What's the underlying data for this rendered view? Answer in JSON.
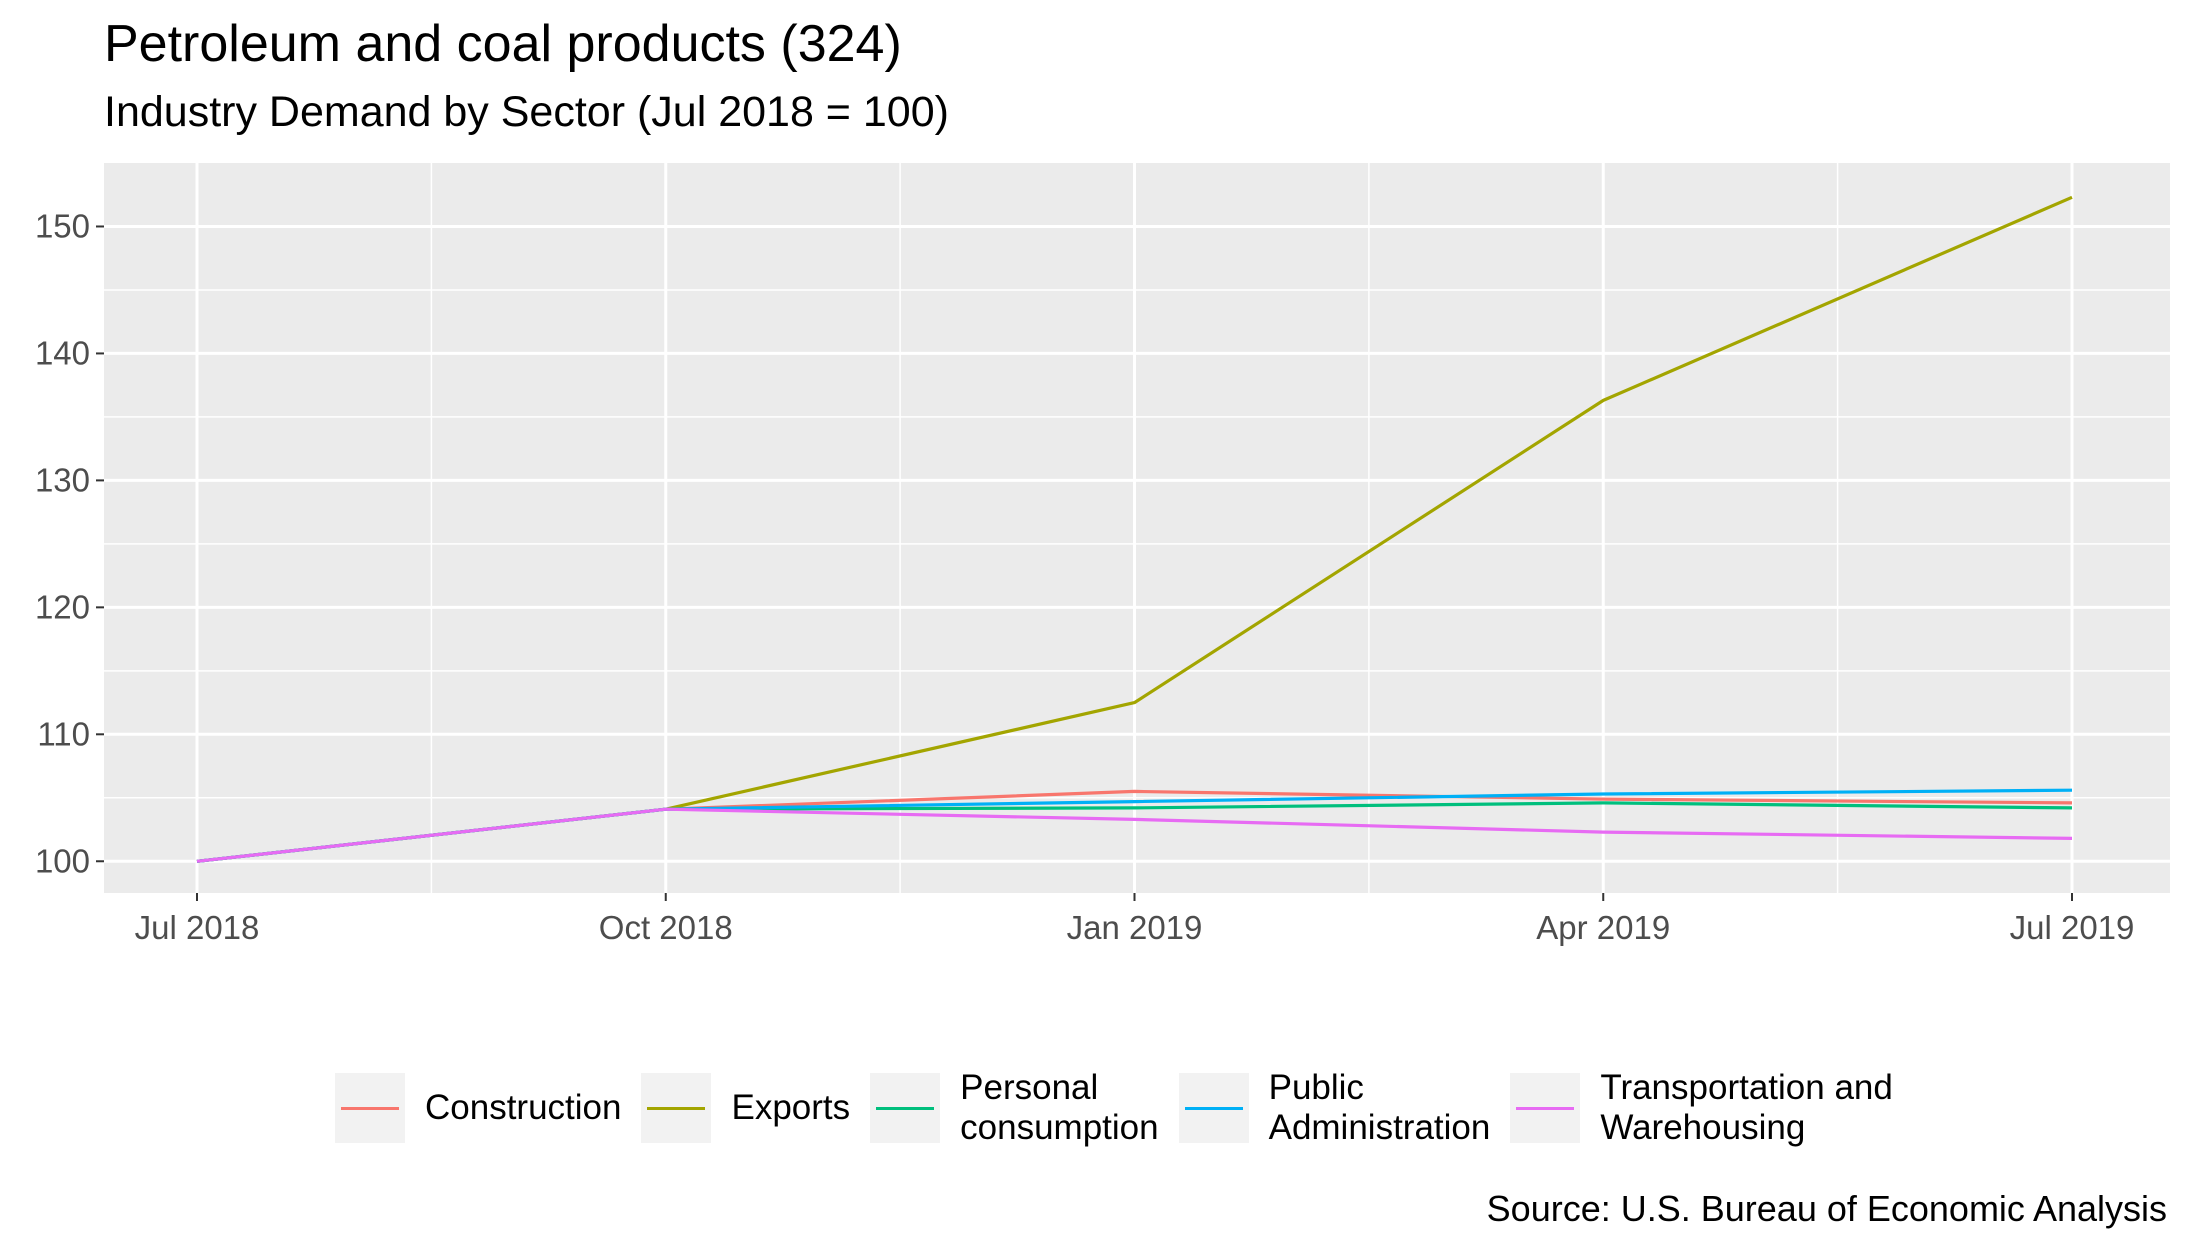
{
  "title": "Petroleum and coal products (324)",
  "subtitle": "Industry Demand by Sector (Jul 2018 = 100)",
  "source": "Source: U.S. Bureau of Economic Analysis",
  "colors": {
    "panel_background": "#ebebeb",
    "grid": "#ffffff",
    "legend_key_background": "#f2f2f2"
  },
  "chart_data": {
    "type": "line",
    "title": "Petroleum and coal products (324)",
    "subtitle": "Industry Demand by Sector (Jul 2018 = 100)",
    "xlabel": "",
    "ylabel": "",
    "x": [
      "Jul 2018",
      "Oct 2018",
      "Jan 2019",
      "Apr 2019",
      "Jul 2019"
    ],
    "x_tick_labels": [
      "Jul 2018",
      "Oct 2018",
      "Jan 2019",
      "Apr 2019",
      "Jul 2019"
    ],
    "y_ticks": [
      100,
      110,
      120,
      130,
      140,
      150
    ],
    "ylim": [
      97.5,
      155
    ],
    "grid": true,
    "legend_position": "bottom",
    "series": [
      {
        "name": "Construction",
        "color": "#F8766D",
        "values": [
          100,
          104.1,
          105.5,
          104.9,
          104.6
        ]
      },
      {
        "name": "Exports",
        "color": "#A3A500",
        "values": [
          100,
          104.1,
          112.5,
          136.3,
          152.3
        ]
      },
      {
        "name": "Personal consumption",
        "color": "#00BF7D",
        "values": [
          100,
          104.1,
          104.2,
          104.6,
          104.2
        ]
      },
      {
        "name": "Public Administration",
        "color": "#00B0F6",
        "values": [
          100,
          104.1,
          104.7,
          105.3,
          105.6
        ]
      },
      {
        "name": "Transportation and Warehousing",
        "color": "#E76BF3",
        "values": [
          100,
          104.1,
          103.3,
          102.3,
          101.8
        ]
      }
    ]
  },
  "legend": [
    {
      "label": "Construction"
    },
    {
      "label": "Exports"
    },
    {
      "label": "Personal\nconsumption"
    },
    {
      "label": "Public\nAdministration"
    },
    {
      "label": "Transportation and\nWarehousing"
    }
  ]
}
